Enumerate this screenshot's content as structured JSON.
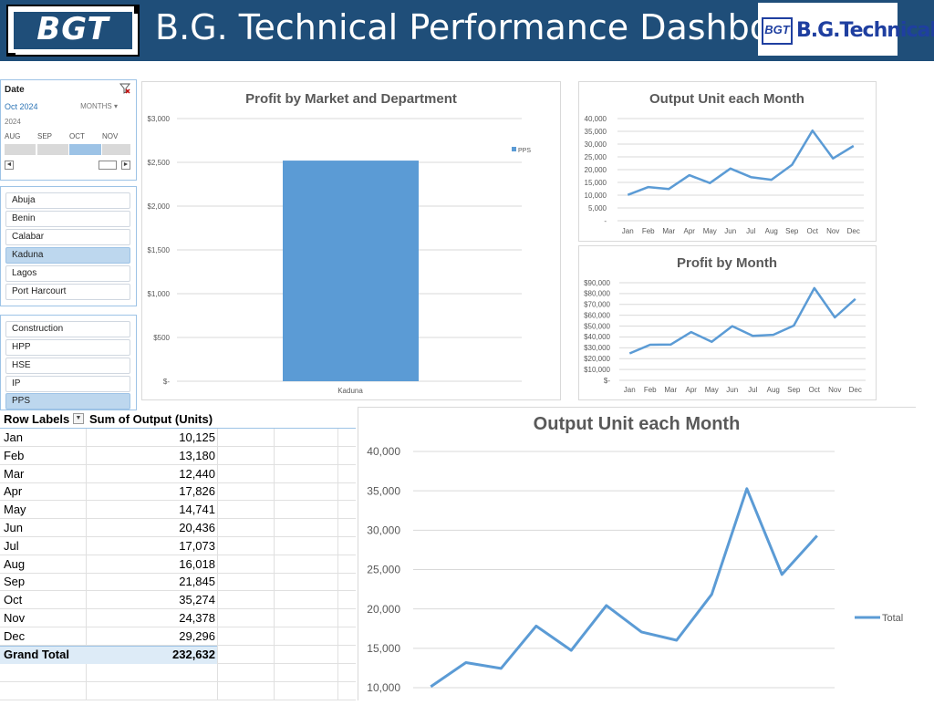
{
  "header": {
    "logo_left_text": "BGT",
    "title": "B.G. Technical Performance Dashboard",
    "logo_right_box": "BGT",
    "logo_right_name": "B.G.Technical",
    "bg_color": "#1F4E79"
  },
  "date_slicer": {
    "title": "Date",
    "selected_label": "Oct 2024",
    "mode": "MONTHS",
    "year": "2024",
    "months": [
      "AUG",
      "SEP",
      "OCT",
      "NOV"
    ],
    "active_month": "OCT",
    "scroll_left": "◄",
    "scroll_right": "►"
  },
  "market_slicer": {
    "items": [
      {
        "label": "Abuja",
        "selected": false
      },
      {
        "label": "Benin",
        "selected": false
      },
      {
        "label": "Calabar",
        "selected": false
      },
      {
        "label": "Kaduna",
        "selected": true
      },
      {
        "label": "Lagos",
        "selected": false
      },
      {
        "label": "Port Harcourt",
        "selected": false
      }
    ]
  },
  "dept_slicer": {
    "items": [
      {
        "label": "Construction",
        "selected": false
      },
      {
        "label": "HPP",
        "selected": false
      },
      {
        "label": "HSE",
        "selected": false
      },
      {
        "label": "IP",
        "selected": false
      },
      {
        "label": "PPS",
        "selected": true
      }
    ]
  },
  "pivot": {
    "headers": [
      "Row Labels",
      "Sum of Output (Units)"
    ],
    "dropdown_icon": "▼",
    "rows": [
      {
        "label": "Jan",
        "value": "10,125"
      },
      {
        "label": "Feb",
        "value": "13,180"
      },
      {
        "label": "Mar",
        "value": "12,440"
      },
      {
        "label": "Apr",
        "value": "17,826"
      },
      {
        "label": "May",
        "value": "14,741"
      },
      {
        "label": "Jun",
        "value": "20,436"
      },
      {
        "label": "Jul",
        "value": "17,073"
      },
      {
        "label": "Aug",
        "value": "16,018"
      },
      {
        "label": "Sep",
        "value": "21,845"
      },
      {
        "label": "Oct",
        "value": "35,274"
      },
      {
        "label": "Nov",
        "value": "24,378"
      },
      {
        "label": "Dec",
        "value": "29,296"
      }
    ],
    "total_label": "Grand Total",
    "total_value": "232,632"
  },
  "chart_data": [
    {
      "id": "profit-by-market",
      "type": "bar",
      "title": "Profit by Market and Department",
      "categories": [
        "Kaduna"
      ],
      "series": [
        {
          "name": "PPS",
          "values": [
            2520
          ]
        }
      ],
      "ylim": [
        0,
        3000
      ],
      "yticks": [
        "$-",
        "$500",
        "$1,000",
        "$1,500",
        "$2,000",
        "$2,500",
        "$3,000"
      ],
      "legend": "right",
      "color": "#5B9BD5"
    },
    {
      "id": "output-small",
      "type": "line",
      "title": "Output Unit each Month",
      "categories": [
        "Jan",
        "Feb",
        "Mar",
        "Apr",
        "May",
        "Jun",
        "Jul",
        "Aug",
        "Sep",
        "Oct",
        "Nov",
        "Dec"
      ],
      "series": [
        {
          "values": [
            10125,
            13180,
            12440,
            17826,
            14741,
            20436,
            17073,
            16018,
            21845,
            35274,
            24378,
            29296
          ]
        }
      ],
      "ylim": [
        0,
        40000
      ],
      "yticks": [
        "-",
        "5,000",
        "10,000",
        "15,000",
        "20,000",
        "25,000",
        "30,000",
        "35,000",
        "40,000"
      ],
      "color": "#5B9BD5"
    },
    {
      "id": "profit-by-month",
      "type": "line",
      "title": "Profit by Month",
      "categories": [
        "Jan",
        "Feb",
        "Mar",
        "Apr",
        "May",
        "Jun",
        "Jul",
        "Aug",
        "Sep",
        "Oct",
        "Nov",
        "Dec"
      ],
      "series": [
        {
          "values": [
            24800,
            32800,
            33000,
            44500,
            35500,
            50000,
            41000,
            42000,
            50500,
            85000,
            58000,
            75000
          ]
        }
      ],
      "ylim": [
        0,
        90000
      ],
      "yticks": [
        "$-",
        "$10,000",
        "$20,000",
        "$30,000",
        "$40,000",
        "$50,000",
        "$60,000",
        "$70,000",
        "$80,000",
        "$90,000"
      ],
      "color": "#5B9BD5"
    },
    {
      "id": "output-large",
      "type": "line",
      "title": "Output Unit each Month",
      "categories": [
        "Jan",
        "Feb",
        "Mar",
        "Apr",
        "May",
        "Jun",
        "Jul",
        "Aug",
        "Sep",
        "Oct",
        "Nov",
        "Dec"
      ],
      "series": [
        {
          "name": "Total",
          "values": [
            10125,
            13180,
            12440,
            17826,
            14741,
            20436,
            17073,
            16018,
            21845,
            35274,
            24378,
            29296
          ]
        }
      ],
      "ylim": [
        10000,
        40000
      ],
      "yticks": [
        "10,000",
        "15,000",
        "20,000",
        "25,000",
        "30,000",
        "35,000",
        "40,000"
      ],
      "legend": "right",
      "color": "#5B9BD5"
    }
  ]
}
